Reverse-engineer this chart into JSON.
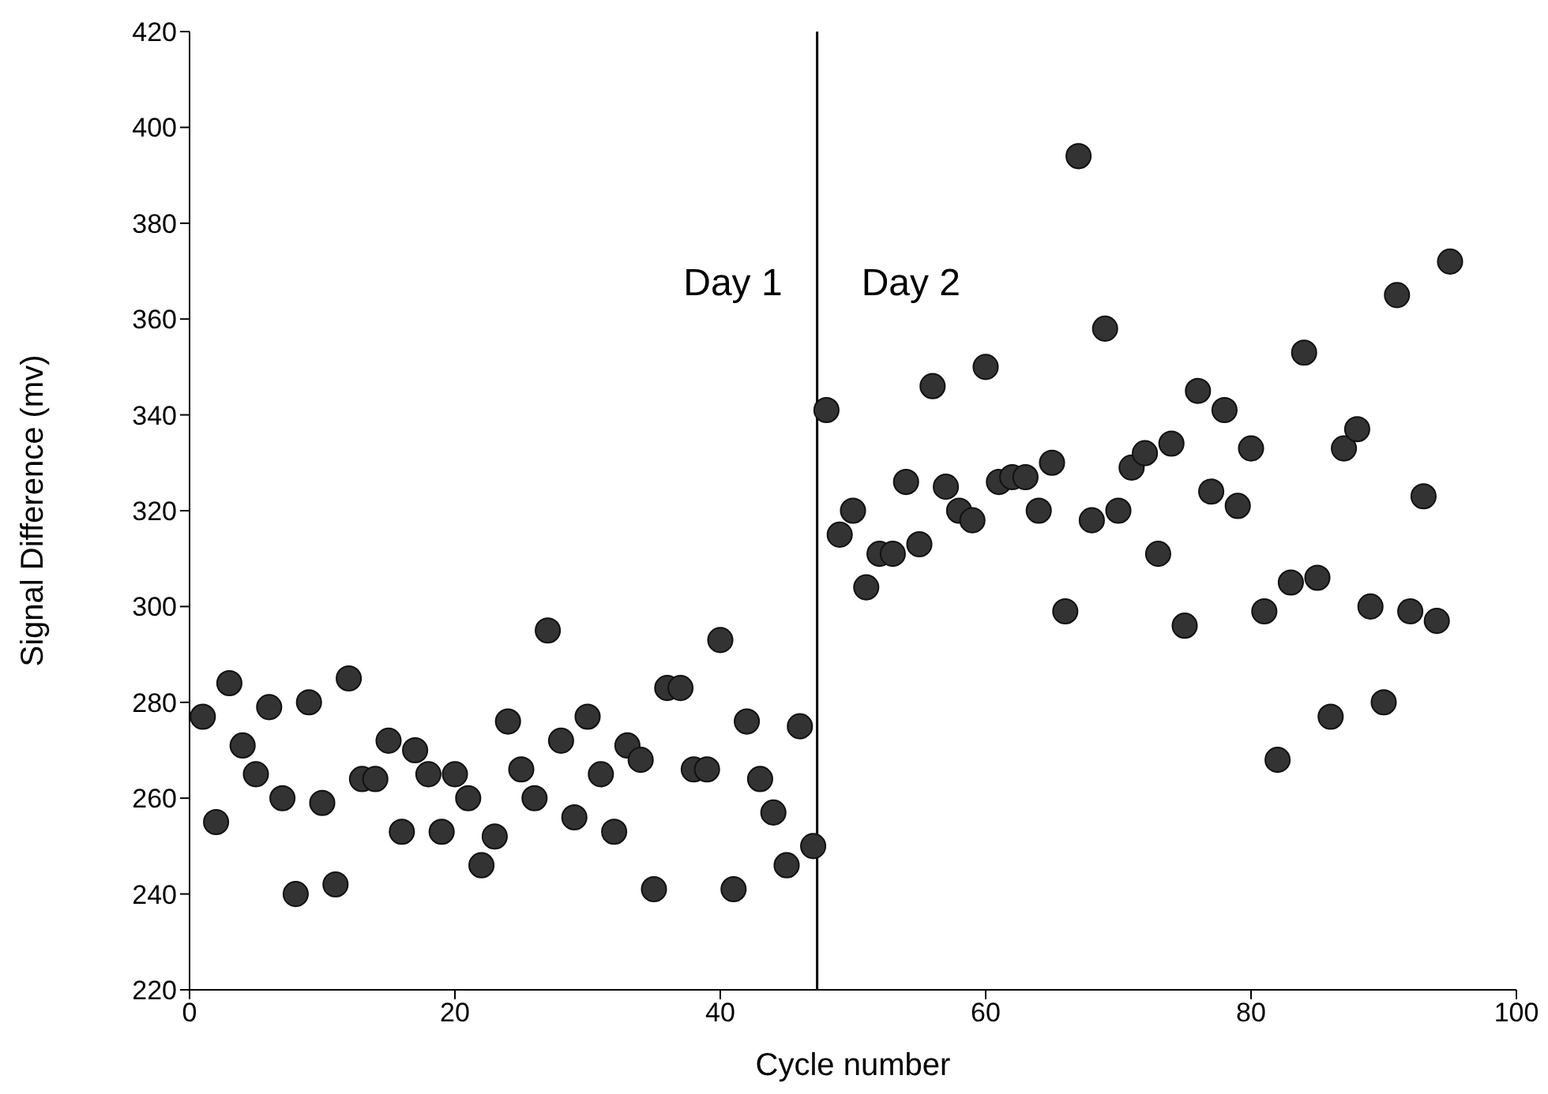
{
  "chart_data": {
    "type": "scatter",
    "xlabel": "Cycle number",
    "ylabel": "Signal Difference (mv)",
    "x": [
      1,
      2,
      3,
      4,
      5,
      6,
      7,
      8,
      9,
      10,
      11,
      12,
      13,
      14,
      15,
      16,
      17,
      18,
      19,
      20,
      21,
      22,
      23,
      24,
      25,
      26,
      27,
      28,
      29,
      30,
      31,
      32,
      33,
      34,
      35,
      36,
      37,
      38,
      39,
      40,
      41,
      42,
      43,
      44,
      45,
      46,
      47,
      48,
      49,
      50,
      51,
      52,
      53,
      54,
      55,
      56,
      57,
      58,
      59,
      60,
      61,
      62,
      63,
      64,
      65,
      66,
      67,
      68,
      69,
      70,
      71,
      72,
      73,
      74,
      75,
      76,
      77,
      78,
      79,
      80,
      81,
      82,
      83,
      84,
      85,
      86,
      87,
      88,
      89,
      90,
      91,
      92,
      93,
      94,
      95
    ],
    "series": [
      {
        "color": "#333333",
        "values": [
          277,
          255,
          284,
          271,
          265,
          279,
          260,
          240,
          280,
          259,
          242,
          285,
          264,
          264,
          272,
          253,
          270,
          265,
          253,
          265,
          260,
          246,
          252,
          276,
          266,
          260,
          295,
          272,
          256,
          277,
          265,
          253,
          271,
          268,
          241,
          283,
          283,
          266,
          266,
          293,
          241,
          276,
          264,
          257,
          246,
          275,
          250,
          341,
          315,
          320,
          304,
          311,
          311,
          326,
          313,
          346,
          325,
          320,
          318,
          350,
          326,
          327,
          327,
          320,
          330,
          299,
          394,
          318,
          358,
          320,
          329,
          332,
          311,
          334,
          296,
          345,
          324,
          341,
          321,
          333,
          299,
          268,
          305,
          353,
          306,
          277,
          333,
          337,
          300,
          280,
          365,
          299,
          323,
          297,
          372
        ]
      }
    ],
    "xlim": [
      0,
      100
    ],
    "xticks": [
      0,
      20,
      40,
      60,
      80,
      100
    ],
    "ylim": [
      220,
      420
    ],
    "yticks": [
      220,
      240,
      260,
      280,
      300,
      320,
      340,
      360,
      380,
      400,
      420
    ],
    "ref_lines": [
      {
        "axis": "x",
        "value": 47.3,
        "color": "#000000"
      }
    ],
    "annotations": [
      "Day 1",
      "Day 2"
    ],
    "marker": "circle",
    "grid": false,
    "legend": false
  }
}
